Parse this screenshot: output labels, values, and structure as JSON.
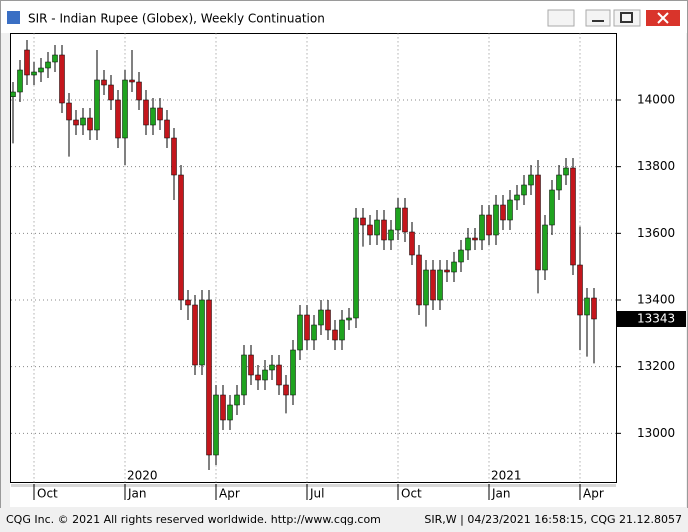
{
  "window": {
    "title": "SIR - Indian Rupee (Globex), Weekly Continuation"
  },
  "footer": {
    "left": "CQG Inc. © 2021 All rights reserved worldwide. http://www.cqg.com",
    "right": "SIR,W | 04/23/2021 16:58:15, CQG 21.12.8057"
  },
  "chart_data": {
    "type": "candlestick",
    "categories": [
      null,
      null,
      null,
      "Oct",
      null,
      null,
      null,
      null,
      null,
      null,
      null,
      null,
      null,
      null,
      null,
      null,
      "Jan",
      null,
      null,
      null,
      null,
      null,
      null,
      null,
      null,
      null,
      null,
      null,
      null,
      "Apr",
      null,
      null,
      null,
      null,
      null,
      null,
      null,
      null,
      null,
      null,
      null,
      null,
      "Jul",
      null,
      null,
      null,
      null,
      null,
      null,
      null,
      null,
      null,
      null,
      null,
      null,
      "Oct",
      null,
      null,
      null,
      null,
      null,
      null,
      null,
      null,
      null,
      null,
      null,
      null,
      "Jan",
      null,
      null,
      null,
      null,
      null,
      null,
      null,
      null,
      null,
      null,
      null,
      null,
      "Apr",
      null,
      null
    ],
    "annotations": [
      "2020",
      "2021"
    ],
    "series": [
      {
        "up_color": "#1fa31f",
        "down_color": "#c4161c",
        "open": [
          14010,
          14024,
          14150,
          14075,
          14084,
          14096,
          14114,
          14135,
          13991,
          13940,
          13925,
          13946,
          13910,
          14060,
          14045,
          14000,
          13886,
          14060,
          14054,
          14000,
          13925,
          13976,
          13940,
          13886,
          13775,
          13400,
          13385,
          13205,
          13400,
          12935,
          13115,
          13040,
          13085,
          13115,
          13235,
          13175,
          13160,
          13190,
          13205,
          13145,
          13115,
          13250,
          13355,
          13280,
          13325,
          13370,
          13310,
          13280,
          13340,
          13346,
          13646,
          13625,
          13595,
          13640,
          13580,
          13610,
          13676,
          13604,
          13535,
          13385,
          13490,
          13400,
          13490,
          13484,
          13514,
          13550,
          13586,
          13580,
          13655,
          13595,
          13685,
          13640,
          13700,
          13715,
          13745,
          13775,
          13490,
          13625,
          13730,
          13775,
          13796,
          13505,
          13355,
          13406
        ],
        "high": [
          14054,
          14120,
          14180,
          14114,
          14126,
          14144,
          14165,
          14165,
          14021,
          13970,
          13976,
          13976,
          14150,
          14090,
          14075,
          14030,
          14090,
          14150,
          14084,
          14030,
          14006,
          14006,
          13970,
          13916,
          13805,
          13430,
          13415,
          13430,
          13430,
          13145,
          13145,
          13115,
          13145,
          13265,
          13265,
          13205,
          13220,
          13235,
          13235,
          13175,
          13280,
          13385,
          13385,
          13355,
          13400,
          13400,
          13340,
          13370,
          13376,
          13676,
          13676,
          13655,
          13670,
          13670,
          13640,
          13706,
          13706,
          13634,
          13565,
          13520,
          13520,
          13520,
          13520,
          13544,
          13580,
          13616,
          13616,
          13685,
          13685,
          13715,
          13715,
          13730,
          13745,
          13775,
          13805,
          13820,
          13655,
          13760,
          13805,
          13826,
          13826,
          13620,
          13436,
          13436
        ],
        "low": [
          13870,
          13994,
          14045,
          14045,
          14054,
          14066,
          14084,
          13961,
          13830,
          13895,
          13895,
          13880,
          13880,
          14015,
          13970,
          13856,
          13805,
          14024,
          13970,
          13895,
          13895,
          13910,
          13856,
          13700,
          13370,
          13340,
          13175,
          13175,
          12890,
          12905,
          13010,
          13010,
          13055,
          13085,
          13145,
          13130,
          13130,
          13160,
          13115,
          13060,
          13085,
          13220,
          13250,
          13250,
          13295,
          13280,
          13250,
          13250,
          13310,
          13316,
          13560,
          13565,
          13565,
          13550,
          13550,
          13580,
          13574,
          13505,
          13355,
          13320,
          13370,
          13370,
          13454,
          13454,
          13484,
          13520,
          13550,
          13550,
          13565,
          13565,
          13610,
          13610,
          13670,
          13685,
          13715,
          13420,
          13460,
          13595,
          13700,
          13745,
          13475,
          13250,
          13230,
          13210
        ],
        "close": [
          14024,
          14090,
          14075,
          14084,
          14096,
          14114,
          14135,
          13991,
          13940,
          13925,
          13946,
          13910,
          14060,
          14045,
          14000,
          13886,
          14060,
          14054,
          14000,
          13925,
          13976,
          13940,
          13886,
          13775,
          13400,
          13385,
          13205,
          13400,
          12935,
          13115,
          13040,
          13085,
          13115,
          13235,
          13175,
          13160,
          13190,
          13205,
          13145,
          13115,
          13250,
          13355,
          13280,
          13325,
          13370,
          13310,
          13280,
          13340,
          13346,
          13646,
          13625,
          13595,
          13640,
          13580,
          13610,
          13676,
          13604,
          13535,
          13385,
          13490,
          13400,
          13490,
          13484,
          13514,
          13550,
          13586,
          13580,
          13655,
          13595,
          13685,
          13640,
          13700,
          13715,
          13745,
          13775,
          13490,
          13625,
          13730,
          13775,
          13796,
          13505,
          13355,
          13406,
          13343
        ]
      }
    ],
    "ylim": [
      12850,
      14200
    ],
    "yticks": [
      13000,
      13200,
      13400,
      13600,
      13800,
      14000
    ],
    "grid": true
  }
}
